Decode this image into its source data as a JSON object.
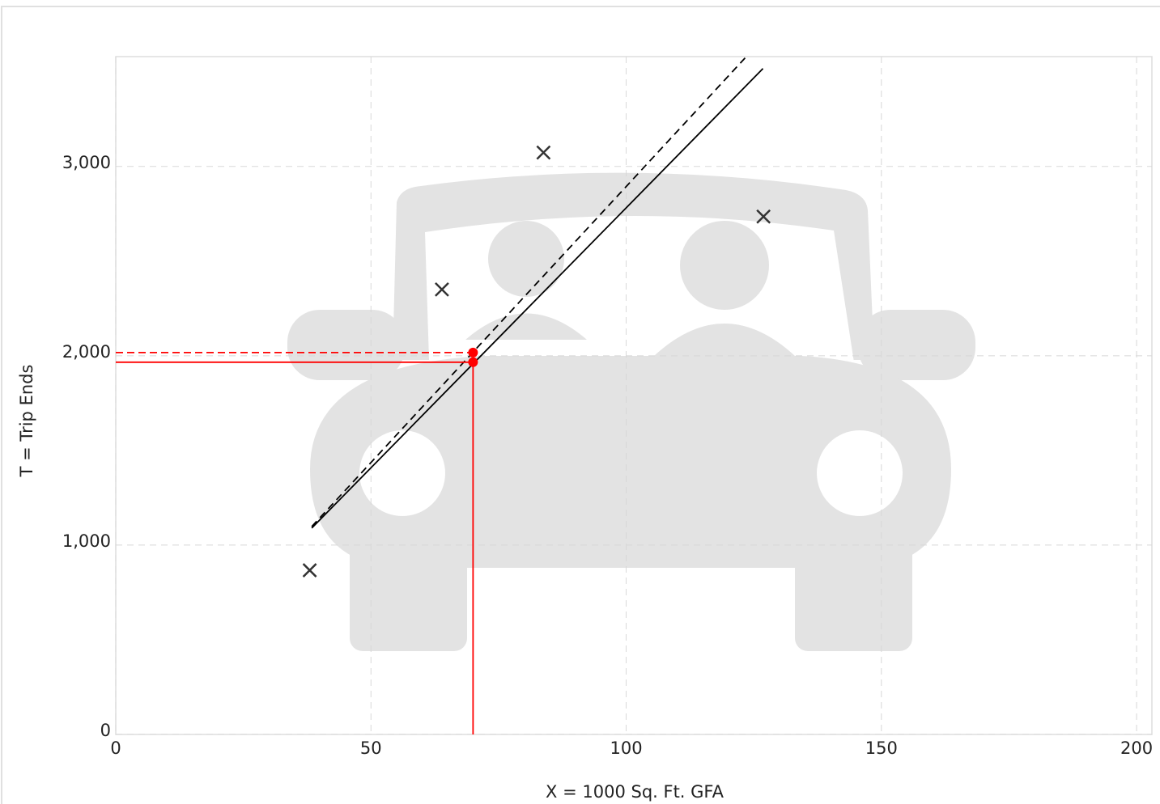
{
  "chart_data": {
    "type": "scatter",
    "x_label": "X = 1000 Sq. Ft. GFA",
    "y_label": "T = Trip Ends",
    "points": {
      "x": [
        38.0,
        63.9,
        83.8,
        126.9
      ],
      "y": [
        867,
        2350,
        3073,
        2735
      ],
      "color": "#333333"
    },
    "fitted_curve": {
      "x": [
        38.4,
        126.8
      ],
      "y": [
        1090,
        3517
      ],
      "color": "#000000"
    },
    "average_rate": {
      "x": [
        38.4,
        123.3
      ],
      "y": [
        1098,
        3573
      ],
      "color": "#000000"
    },
    "input_x": 70,
    "fitted_y": 1966,
    "average_y": 2017,
    "marker_color": "#ff0000",
    "xlim": [
      0,
      203
    ],
    "ylim": [
      0,
      3580
    ],
    "xticks": [
      0,
      50,
      100,
      150,
      200
    ],
    "yticks": [
      0,
      {
        "value": 1000,
        "label": "1,000"
      },
      {
        "value": 2000,
        "label": "2,000"
      },
      {
        "value": 3000,
        "label": "3,000"
      }
    ],
    "grid": true
  }
}
